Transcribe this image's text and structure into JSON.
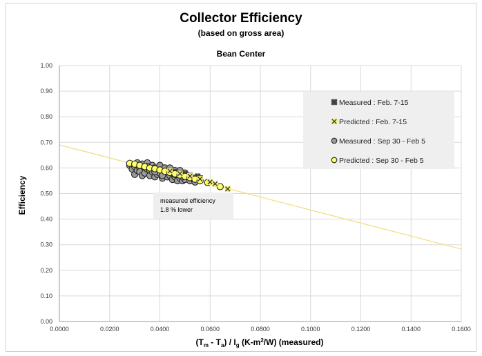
{
  "chart_data": {
    "type": "scatter",
    "title": "Collector Efficiency",
    "subtitle": "(based on gross area)",
    "site_label": "Bean Center",
    "ylabel": "Efficiency",
    "xlabel": {
      "parts": [
        "(T",
        "m",
        " - T",
        "a",
        ") / I",
        "g",
        "  (K-m",
        "2",
        "/W) (measured)"
      ]
    },
    "xlim": [
      0,
      0.16
    ],
    "ylim": [
      0,
      1.0
    ],
    "x_ticks": [
      "0.0000",
      "0.0200",
      "0.0400",
      "0.0600",
      "0.0800",
      "0.1000",
      "0.1200",
      "0.1400",
      "0.1600"
    ],
    "y_ticks": [
      "0.00",
      "0.10",
      "0.20",
      "0.30",
      "0.40",
      "0.50",
      "0.60",
      "0.70",
      "0.80",
      "0.90",
      "1.00"
    ],
    "grid": true,
    "legend_position": "top-right",
    "series": [
      {
        "name": "Measured : Feb. 7-15",
        "marker": "x-square",
        "color": "#555555",
        "points": [
          [
            0.043,
            0.59
          ],
          [
            0.046,
            0.585
          ],
          [
            0.048,
            0.58
          ],
          [
            0.05,
            0.577
          ],
          [
            0.052,
            0.57
          ],
          [
            0.055,
            0.567
          ],
          [
            0.056,
            0.56
          ],
          [
            0.044,
            0.582
          ],
          [
            0.047,
            0.575
          ]
        ]
      },
      {
        "name": "Predicted : Feb. 7-15",
        "marker": "x-square",
        "color": "#f3ef70",
        "points": [
          [
            0.044,
            0.588
          ],
          [
            0.048,
            0.578
          ],
          [
            0.052,
            0.568
          ],
          [
            0.056,
            0.557
          ],
          [
            0.06,
            0.545
          ],
          [
            0.062,
            0.538
          ],
          [
            0.067,
            0.518
          ]
        ]
      },
      {
        "name": "Measured : Sep 30 - Feb 5",
        "marker": "circle",
        "color": "#9b9b9b",
        "points": [
          [
            0.028,
            0.61
          ],
          [
            0.029,
            0.595
          ],
          [
            0.03,
            0.605
          ],
          [
            0.03,
            0.575
          ],
          [
            0.031,
            0.62
          ],
          [
            0.031,
            0.59
          ],
          [
            0.032,
            0.6
          ],
          [
            0.032,
            0.585
          ],
          [
            0.033,
            0.615
          ],
          [
            0.033,
            0.57
          ],
          [
            0.034,
            0.605
          ],
          [
            0.034,
            0.58
          ],
          [
            0.035,
            0.595
          ],
          [
            0.035,
            0.62
          ],
          [
            0.036,
            0.59
          ],
          [
            0.036,
            0.57
          ],
          [
            0.037,
            0.61
          ],
          [
            0.037,
            0.585
          ],
          [
            0.038,
            0.6
          ],
          [
            0.038,
            0.565
          ],
          [
            0.039,
            0.595
          ],
          [
            0.039,
            0.575
          ],
          [
            0.04,
            0.61
          ],
          [
            0.04,
            0.58
          ],
          [
            0.041,
            0.59
          ],
          [
            0.041,
            0.56
          ],
          [
            0.042,
            0.6
          ],
          [
            0.042,
            0.575
          ],
          [
            0.043,
            0.585
          ],
          [
            0.043,
            0.565
          ],
          [
            0.044,
            0.6
          ],
          [
            0.044,
            0.57
          ],
          [
            0.045,
            0.58
          ],
          [
            0.045,
            0.555
          ],
          [
            0.046,
            0.59
          ],
          [
            0.046,
            0.565
          ],
          [
            0.047,
            0.575
          ],
          [
            0.047,
            0.55
          ],
          [
            0.048,
            0.59
          ],
          [
            0.048,
            0.56
          ],
          [
            0.049,
            0.57
          ],
          [
            0.049,
            0.55
          ],
          [
            0.05,
            0.58
          ],
          [
            0.05,
            0.555
          ],
          [
            0.051,
            0.565
          ],
          [
            0.052,
            0.55
          ],
          [
            0.053,
            0.56
          ],
          [
            0.054,
            0.545
          ],
          [
            0.035,
            0.605
          ],
          [
            0.038,
            0.585
          ],
          [
            0.041,
            0.57
          ],
          [
            0.044,
            0.585
          ],
          [
            0.046,
            0.575
          ],
          [
            0.049,
            0.565
          ]
        ]
      },
      {
        "name": "Predicted : Sep 30 - Feb 5",
        "marker": "circle",
        "color": "#ffff66",
        "points": [
          [
            0.028,
            0.618
          ],
          [
            0.03,
            0.615
          ],
          [
            0.032,
            0.61
          ],
          [
            0.034,
            0.605
          ],
          [
            0.036,
            0.6
          ],
          [
            0.038,
            0.597
          ],
          [
            0.04,
            0.592
          ],
          [
            0.042,
            0.587
          ],
          [
            0.044,
            0.582
          ],
          [
            0.046,
            0.577
          ],
          [
            0.048,
            0.572
          ],
          [
            0.05,
            0.567
          ],
          [
            0.052,
            0.562
          ],
          [
            0.054,
            0.556
          ],
          [
            0.056,
            0.55
          ],
          [
            0.059,
            0.543
          ],
          [
            0.064,
            0.527
          ]
        ]
      }
    ],
    "trendline": {
      "color": "#f3e08a",
      "points": [
        [
          0.0,
          0.69
        ],
        [
          0.16,
          0.283
        ]
      ]
    },
    "annotation": {
      "text_lines": [
        "measured  efficiency",
        "1.8 % lower"
      ]
    }
  }
}
